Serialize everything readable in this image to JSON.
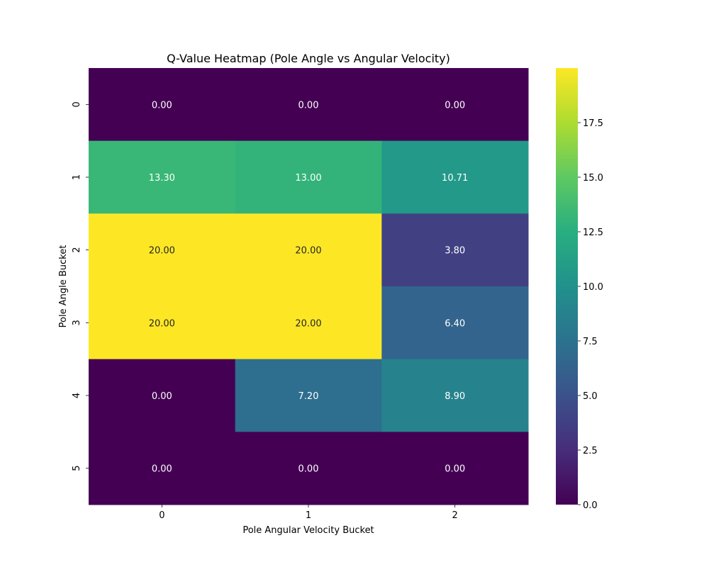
{
  "chart_data": {
    "type": "heatmap",
    "title": "Q-Value Heatmap (Pole Angle vs Angular Velocity)",
    "xlabel": "Pole Angular Velocity Bucket",
    "ylabel": "Pole Angle Bucket",
    "x_categories": [
      "0",
      "1",
      "2"
    ],
    "y_categories": [
      "0",
      "1",
      "2",
      "3",
      "4",
      "5"
    ],
    "values": [
      [
        0.0,
        0.0,
        0.0
      ],
      [
        13.3,
        13.0,
        10.71
      ],
      [
        20.0,
        20.0,
        3.8
      ],
      [
        20.0,
        20.0,
        6.4
      ],
      [
        0.0,
        7.2,
        8.9
      ],
      [
        0.0,
        0.0,
        0.0
      ]
    ],
    "value_labels": [
      [
        "0.00",
        "0.00",
        "0.00"
      ],
      [
        "13.30",
        "13.00",
        "10.71"
      ],
      [
        "20.00",
        "20.00",
        "3.80"
      ],
      [
        "20.00",
        "20.00",
        "6.40"
      ],
      [
        "0.00",
        "7.20",
        "8.90"
      ],
      [
        "0.00",
        "0.00",
        "0.00"
      ]
    ],
    "colormap": "viridis",
    "vmin": 0,
    "vmax": 20,
    "colorbar": {
      "ticks": [
        0.0,
        2.5,
        5.0,
        7.5,
        10.0,
        12.5,
        15.0,
        17.5
      ],
      "tick_labels": [
        "0.0",
        "2.5",
        "5.0",
        "7.5",
        "10.0",
        "12.5",
        "15.0",
        "17.5"
      ]
    },
    "grid": false
  }
}
